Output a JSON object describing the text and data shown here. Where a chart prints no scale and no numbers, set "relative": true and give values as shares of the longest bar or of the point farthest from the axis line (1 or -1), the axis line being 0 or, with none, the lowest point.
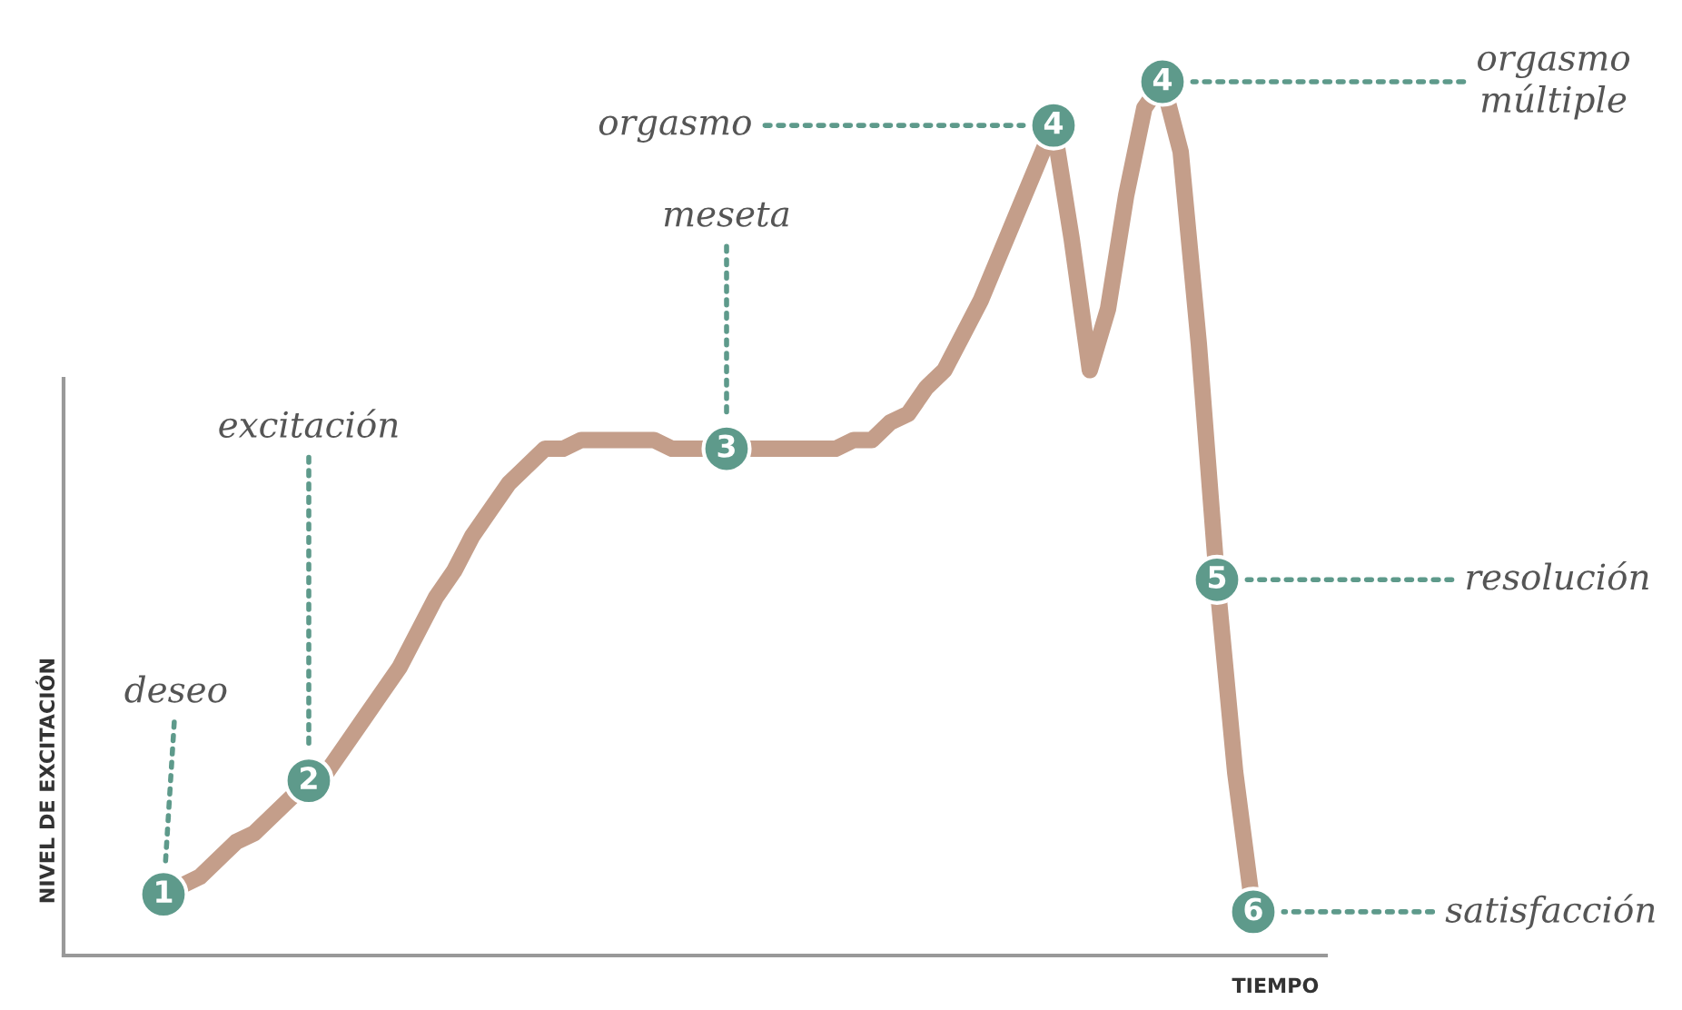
{
  "chart_data": {
    "type": "line",
    "relative": true,
    "xlabel": "TIEMPO",
    "ylabel": "NIVEL DE EXCITACIÓN",
    "categories": [
      null,
      null,
      null,
      null,
      null,
      null,
      null,
      null,
      null,
      null,
      null,
      null,
      null,
      null,
      null,
      null,
      null,
      null,
      null,
      null,
      null,
      null,
      null,
      null,
      null,
      null,
      null,
      null,
      null,
      null,
      null,
      null,
      null,
      null,
      null,
      null,
      null,
      null,
      null,
      null,
      null,
      null,
      null,
      null,
      null,
      null,
      null,
      null,
      null,
      null,
      null,
      null,
      null,
      null,
      null,
      null,
      null,
      null,
      null,
      null,
      null
    ],
    "series": [
      {
        "color": "#c49e8a",
        "values": [
          0.07,
          0.08,
          0.09,
          0.11,
          0.13,
          0.14,
          0.16,
          0.18,
          0.2,
          0.21,
          0.24,
          0.27,
          0.3,
          0.33,
          0.37,
          0.41,
          0.44,
          0.48,
          0.51,
          0.54,
          0.56,
          0.58,
          0.58,
          0.59,
          0.59,
          0.59,
          0.59,
          0.59,
          0.58,
          0.58,
          0.58,
          0.58,
          0.58,
          0.58,
          0.58,
          0.58,
          0.58,
          0.58,
          0.59,
          0.59,
          0.61,
          0.62,
          0.65,
          0.67,
          0.71,
          0.75,
          0.8,
          0.85,
          0.9,
          0.95,
          0.82,
          0.67,
          0.74,
          0.87,
          0.97,
          1.0,
          0.92,
          0.7,
          0.43,
          0.21,
          0.05
        ]
      }
    ],
    "annotations": [
      {
        "text": "1",
        "y": 0.07
      },
      {
        "text": "2",
        "y": 0.2
      },
      {
        "text": "3",
        "y": 0.58
      },
      {
        "text": "4",
        "y": 0.95
      },
      {
        "text": "4",
        "y": 1.0
      },
      {
        "text": "5",
        "y": 0.43
      },
      {
        "text": "6",
        "y": 0.05
      },
      "deseo",
      "excitación",
      "meseta",
      "orgasmo",
      "orgasmo\nmúltiple",
      "resolución",
      "satisfacción"
    ],
    "grid": false,
    "legend": false
  }
}
